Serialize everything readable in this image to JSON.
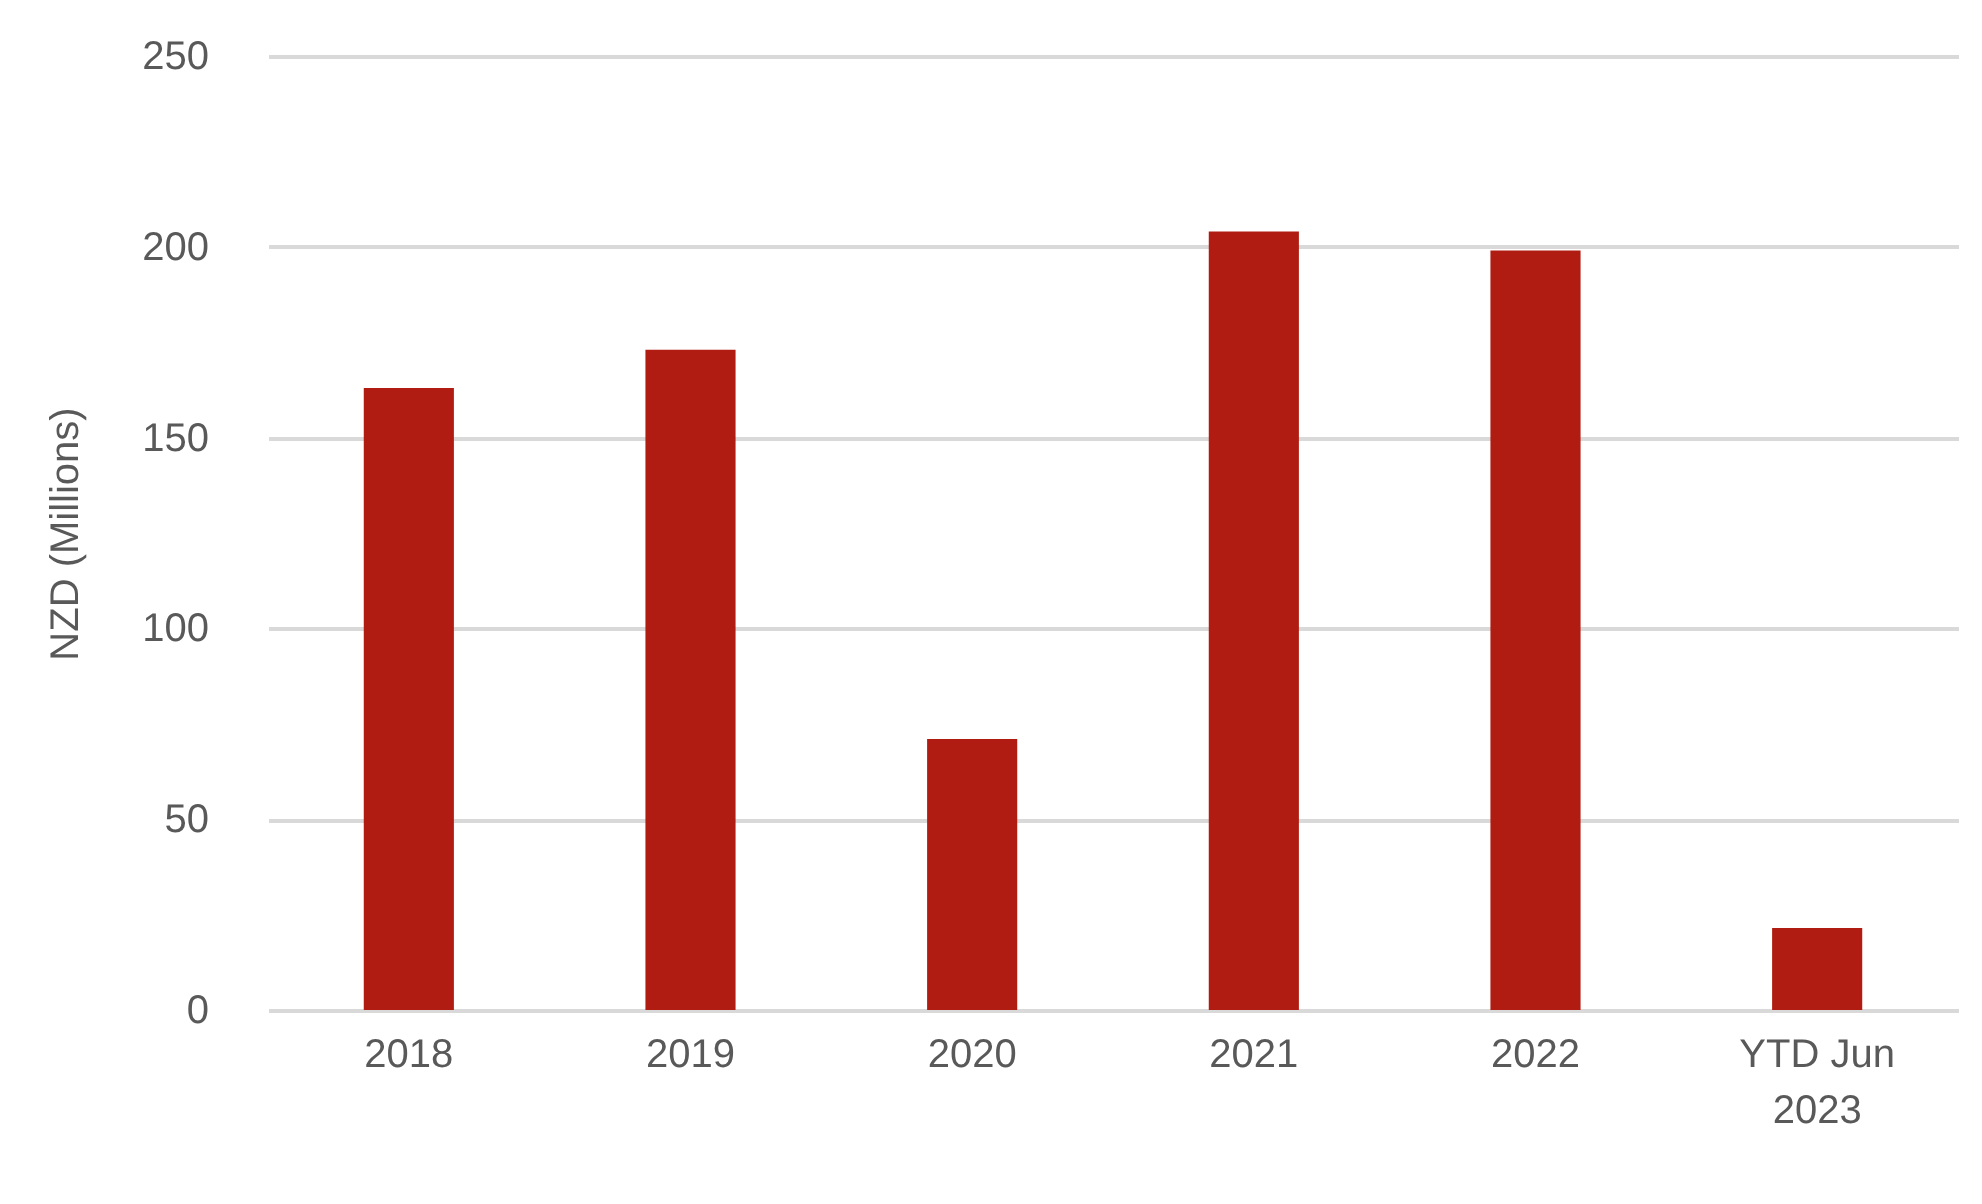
{
  "chart_data": {
    "type": "bar",
    "ylabel": "NZD (Millions)",
    "categories": [
      "2018",
      "2019",
      "2020",
      "2021",
      "2022",
      "YTD Jun 2023"
    ],
    "values": [
      163,
      173,
      71,
      204,
      199,
      21.5
    ],
    "color": "#b01c12",
    "ylim": [
      0,
      250
    ],
    "yticks": [
      0,
      50,
      100,
      150,
      200,
      250
    ],
    "grid": "y"
  }
}
